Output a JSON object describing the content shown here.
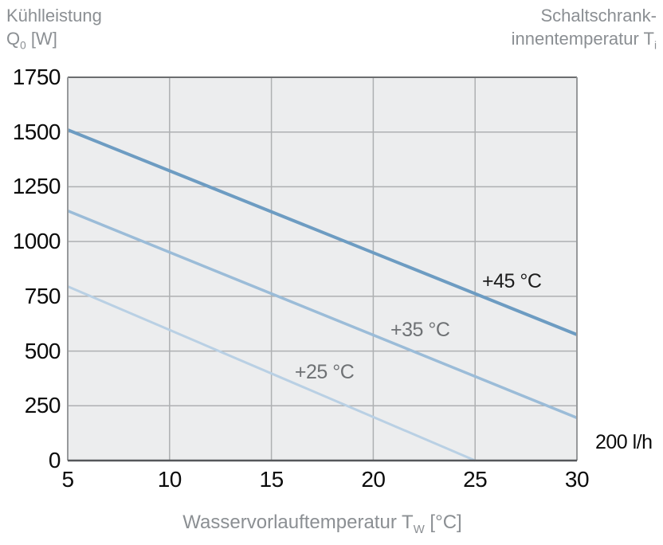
{
  "header": {
    "left_line1": "Kühlleistung",
    "left_symbol": "Q",
    "left_symbol_sub": "0",
    "left_unit": " [W]",
    "right_line1": "Schaltschrank-",
    "right_line2": "innentemperatur T",
    "right_line2_sub": "i"
  },
  "x_axis_title": {
    "text": "Wasservorlauftemperatur T",
    "sub": "W",
    "unit": " [°C]"
  },
  "colors": {
    "plot_bg": "#ecedee",
    "grid": "#aeb0b2",
    "border_top": "#6b6d6f",
    "border_right": "#97999b",
    "border_left": "#97999b",
    "border_bottom": "#55575a",
    "tick_label": "#0b0b0b",
    "axis_title": "#8b8f93"
  },
  "chart_data": {
    "type": "line",
    "title": "",
    "xlabel": "Wasservorlauftemperatur TW [°C]",
    "ylabel": "Kühlleistung Q0 [W]",
    "series_dimension": "Schaltschrankinnentemperatur Ti",
    "xlim": [
      5,
      30
    ],
    "ylim": [
      0,
      1750
    ],
    "x_ticks": [
      5,
      10,
      15,
      20,
      25,
      30
    ],
    "y_ticks": [
      0,
      250,
      500,
      750,
      1000,
      1250,
      1500,
      1750
    ],
    "grid": true,
    "legend_position": "inline-labels",
    "series": [
      {
        "id": "ti-45",
        "name": "+45 °C",
        "color": "#6d9cc2",
        "width": 4,
        "points": [
          [
            5,
            1510
          ],
          [
            30,
            575
          ]
        ]
      },
      {
        "id": "ti-35",
        "name": "+35 °C",
        "color": "#9bbcd8",
        "width": 3.5,
        "points": [
          [
            5,
            1140
          ],
          [
            30,
            195
          ]
        ]
      },
      {
        "id": "ti-25",
        "name": "+25 °C",
        "color": "#b9d0e4",
        "width": 3,
        "points": [
          [
            5,
            795
          ],
          [
            25,
            0
          ]
        ]
      }
    ],
    "annotations": [
      {
        "id": "label-ti-45",
        "label": "+45 °C",
        "x": 26.8,
        "y": 820,
        "color": "#1c1c1c"
      },
      {
        "id": "label-ti-35",
        "label": "+35 °C",
        "x": 22.3,
        "y": 595,
        "color": "#6e7174"
      },
      {
        "id": "label-ti-25",
        "label": "+25 °C",
        "x": 17.6,
        "y": 405,
        "color": "#6e7174"
      },
      {
        "id": "label-flowrate",
        "label": "200 l/h",
        "x": 32.3,
        "y": 85,
        "color": "#0b0b0b"
      }
    ]
  }
}
